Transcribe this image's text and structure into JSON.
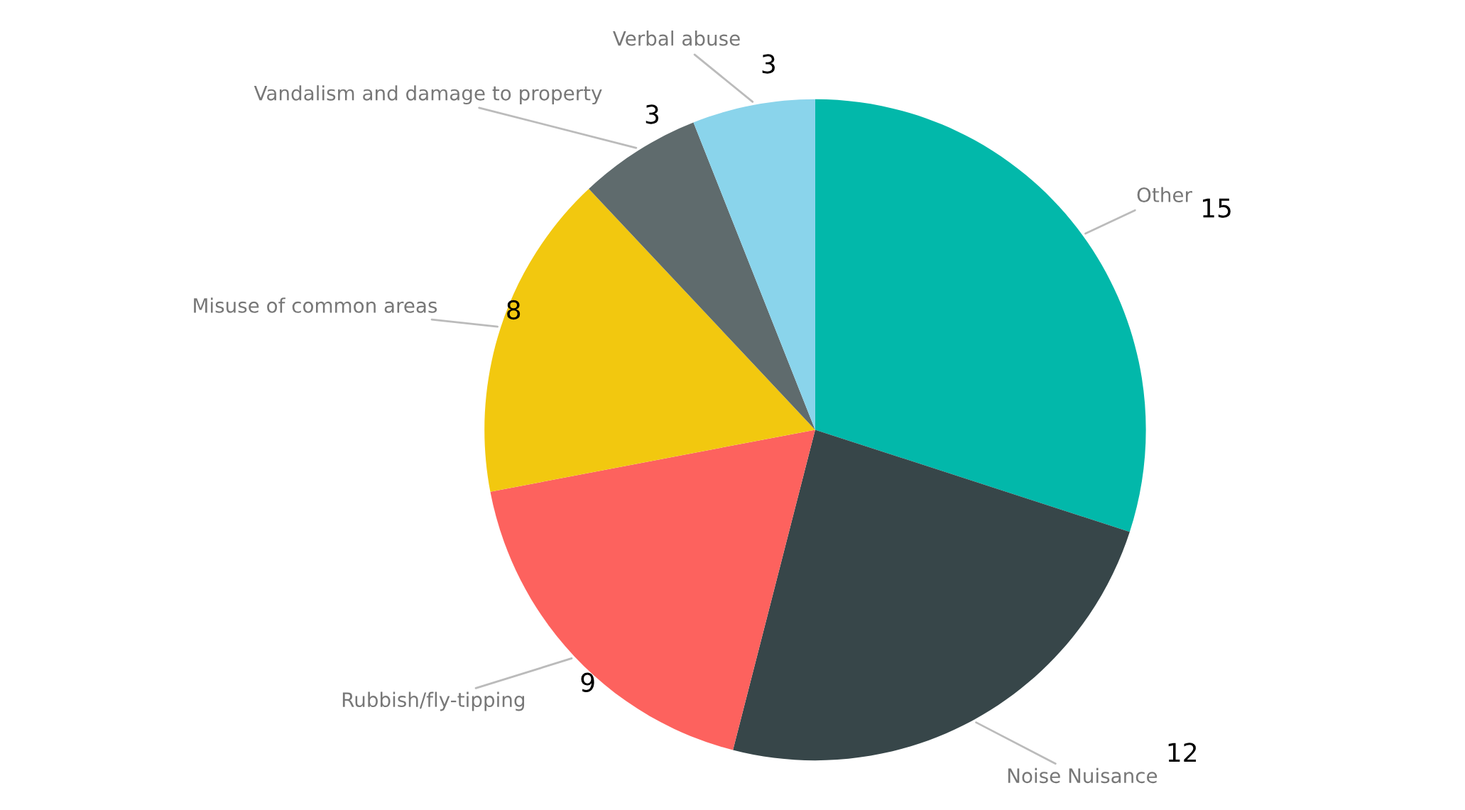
{
  "chart_data": {
    "type": "pie",
    "categories": [
      "Other",
      "Noise Nuisance",
      "Rubbish/fly-tipping",
      "Misuse of common areas",
      "Vandalism and damage to property",
      "Verbal abuse"
    ],
    "values": [
      15,
      12,
      9,
      8,
      3,
      3
    ],
    "colors": [
      "#02b8aa",
      "#374649",
      "#fd625e",
      "#f2c80f",
      "#5f6b6d",
      "#8ad4eb"
    ],
    "data_labels": true,
    "legend": false
  }
}
